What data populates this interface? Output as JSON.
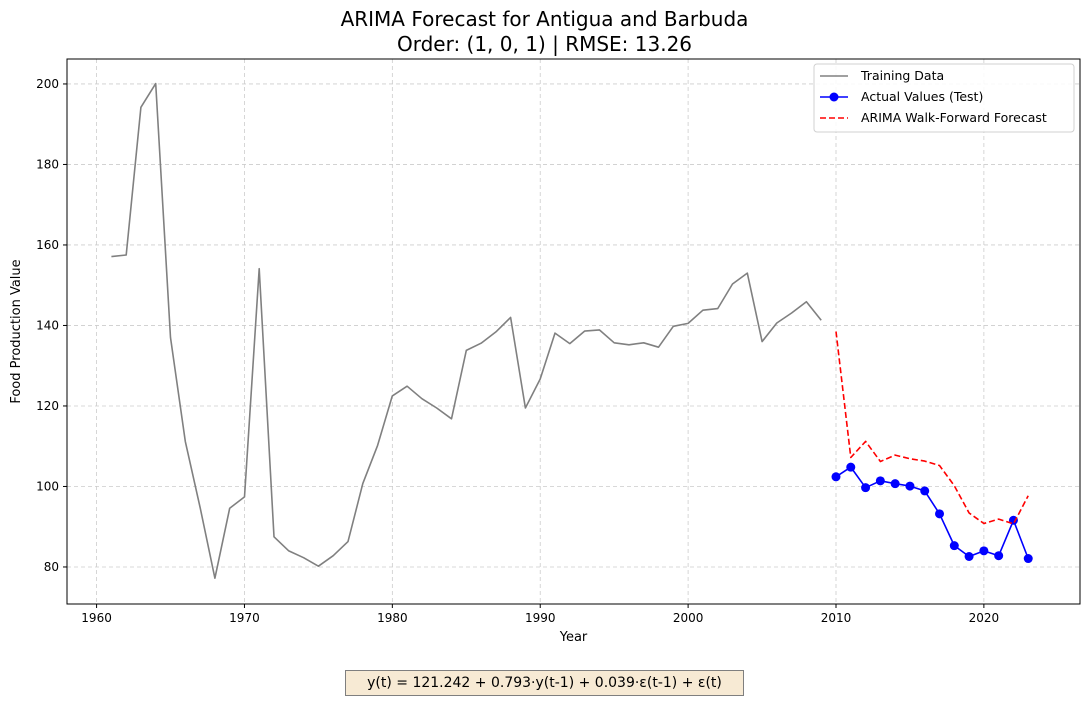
{
  "chart_data": {
    "type": "line",
    "title": "ARIMA Forecast for Antigua and Barbuda",
    "subtitle": "Order: (1, 0, 1) | RMSE: 13.26",
    "xlabel": "Year",
    "ylabel": "Food Production Value",
    "xlim": [
      1958,
      2026.5
    ],
    "ylim": [
      70.8,
      206.2
    ],
    "xticks": [
      1960,
      1970,
      1980,
      1990,
      2000,
      2010,
      2020
    ],
    "yticks": [
      80,
      100,
      120,
      140,
      160,
      180,
      200
    ],
    "grid": true,
    "legend_position": "top-right",
    "series": [
      {
        "name": "Training Data",
        "color": "#808080",
        "style": "solid",
        "markers": false,
        "x": [
          1961,
          1962,
          1963,
          1964,
          1965,
          1966,
          1967,
          1968,
          1969,
          1970,
          1971,
          1972,
          1973,
          1974,
          1975,
          1976,
          1977,
          1978,
          1979,
          1980,
          1981,
          1982,
          1983,
          1984,
          1985,
          1986,
          1987,
          1988,
          1989,
          1990,
          1991,
          1992,
          1993,
          1994,
          1995,
          1996,
          1997,
          1998,
          1999,
          2000,
          2001,
          2002,
          2003,
          2004,
          2005,
          2006,
          2007,
          2008,
          2009
        ],
        "y": [
          157.1,
          157.5,
          194.2,
          200.1,
          137.0,
          111.2,
          94.8,
          77.2,
          94.6,
          97.4,
          154.1,
          87.5,
          84.0,
          82.3,
          80.2,
          82.8,
          86.3,
          100.7,
          110.2,
          122.5,
          124.9,
          121.8,
          119.5,
          116.8,
          133.8,
          135.6,
          138.4,
          142.0,
          119.5,
          126.7,
          138.1,
          135.5,
          138.6,
          138.9,
          135.7,
          135.2,
          135.7,
          134.6,
          139.8,
          140.5,
          143.8,
          144.2,
          150.3,
          153.0,
          136.0,
          140.6,
          143.1,
          145.9,
          141.3
        ]
      },
      {
        "name": "Actual Values (Test)",
        "color": "#0000ff",
        "style": "solid",
        "markers": true,
        "x": [
          2010,
          2011,
          2012,
          2013,
          2014,
          2015,
          2016,
          2017,
          2018,
          2019,
          2020,
          2021,
          2022,
          2023
        ],
        "y": [
          102.4,
          104.8,
          99.7,
          101.4,
          100.7,
          100.1,
          98.9,
          93.2,
          85.3,
          82.6,
          84.0,
          82.8,
          91.6,
          82.1
        ]
      },
      {
        "name": "ARIMA Walk-Forward Forecast",
        "color": "#ff0000",
        "style": "dashed",
        "markers": false,
        "x": [
          2010,
          2011,
          2012,
          2013,
          2014,
          2015,
          2016,
          2017,
          2018,
          2019,
          2020,
          2021,
          2022,
          2023
        ],
        "y": [
          138.5,
          107.2,
          111.2,
          106.2,
          107.8,
          106.9,
          106.3,
          105.2,
          100.2,
          93.4,
          90.8,
          91.9,
          90.7,
          97.7
        ]
      }
    ]
  },
  "formula": "y(t) = 121.242 + 0.793·y(t-1) + 0.039·ε(t-1) + ε(t)"
}
